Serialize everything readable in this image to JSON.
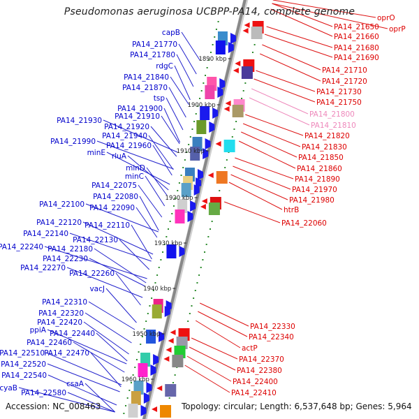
{
  "title": "Pseudomonas aeruginosa UCBPP-PA14, complete genome",
  "footer": {
    "accession": "Accession: NC_008463",
    "summary": "Topology: circular; Length: 6,537,648 bp; Genes: 5,964"
  },
  "colors": {
    "left_label": "#0000cc",
    "right_label": "#dd0000",
    "right_label_faint": "#ee88bb",
    "axis": "#888888",
    "tick": "#2a8a2a",
    "forward_strand_gene": "#1a1aee",
    "reverse_strand_gene": "#ee1111"
  },
  "kbp_ticks": [
    "1890 kbp",
    "1900 kbp",
    "1910 kbp",
    "1920 kbp",
    "1930 kbp",
    "1940 kbp",
    "1950 kbp",
    "1960 kbp"
  ],
  "left_genes": [
    "capB",
    "PA14_21770",
    "PA14_21780",
    "rdgC",
    "PA14_21840",
    "PA14_21870",
    "tsp",
    "PA14_21900",
    "PA14_21910",
    "PA14_21920",
    "PA14_21930",
    "PA14_21940",
    "PA14_21990",
    "PA14_21960",
    "minE",
    "rluA",
    "minD",
    "minC",
    "PA14_22075",
    "PA14_22080",
    "PA14_22100",
    "PA14_22090",
    "PA14_22120",
    "PA14_22110",
    "PA14_22140",
    "PA14_22130",
    "PA14_22240",
    "PA14_22180",
    "PA14_22230",
    "PA14_22270",
    "PA14_22260",
    "vacJ",
    "PA14_22310",
    "PA14_22320",
    "PA14_22420",
    "ppiA",
    "PA14_22440",
    "PA14_22460",
    "PA14_22510",
    "PA14_22470",
    "PA14_22520",
    "PA14_22540",
    "csaA",
    "cyaB",
    "PA14_22580"
  ],
  "right_genes": [
    "oprO",
    "PA14_21650",
    "oprP",
    "PA14_21660",
    "PA14_21680",
    "PA14_21690",
    "PA14_21710",
    "PA14_21720",
    "PA14_21730",
    "PA14_21750",
    "PA14_21800",
    "PA14_21810",
    "PA14_21820",
    "PA14_21830",
    "PA14_21850",
    "PA14_21860",
    "PA14_21890",
    "PA14_21970",
    "PA14_21980",
    "htrB",
    "PA14_22060",
    "PA14_22330",
    "PA14_22340",
    "actP",
    "PA14_22370",
    "PA14_22380",
    "PA14_22400",
    "PA14_22410"
  ]
}
